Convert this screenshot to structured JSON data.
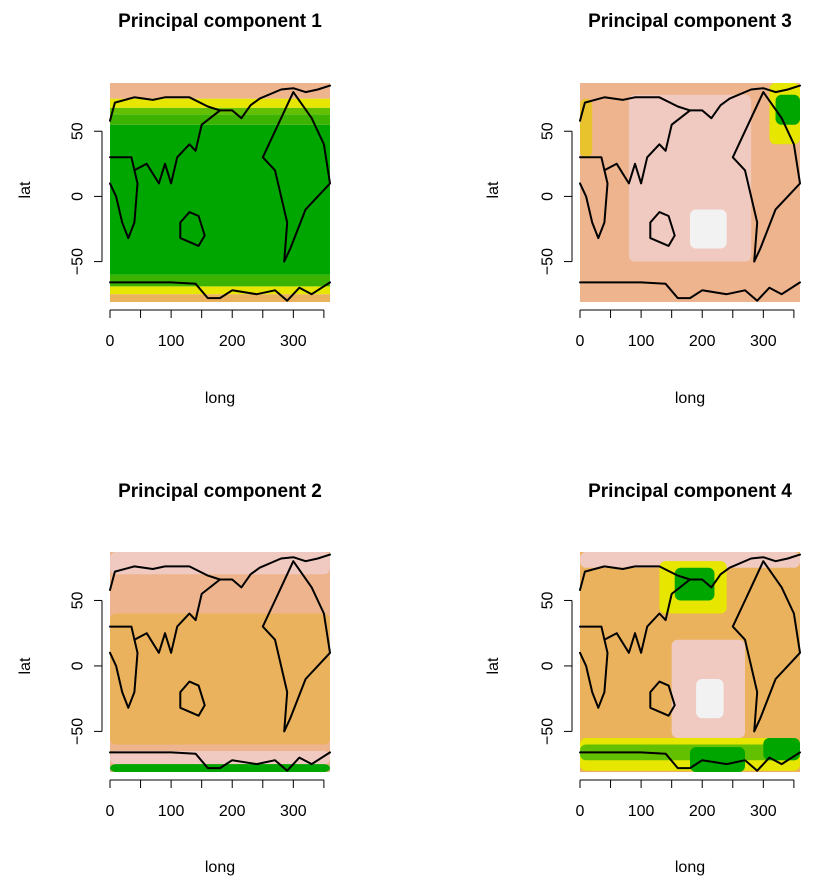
{
  "figure": {
    "layout": "2x2 grid of map panels",
    "palette": [
      "#00A600",
      "#3BB300",
      "#63C000",
      "#E6E600",
      "#E8C32E",
      "#EBB25E",
      "#EDB48E",
      "#F0C9C0",
      "#F2F2F2"
    ],
    "coast_color": "#000000"
  },
  "chart_data": [
    {
      "type": "heatmap",
      "title": "Principal component 1",
      "xlabel": "long",
      "ylabel": "lat",
      "xlim": [
        0,
        360
      ],
      "ylim": [
        -81,
        87
      ],
      "xticks": [
        0,
        100,
        200,
        300
      ],
      "xticks_minor": [
        50,
        150,
        250,
        350
      ],
      "yticks": [
        -50,
        0,
        50
      ],
      "pattern": "zonal bands",
      "bands": [
        {
          "lat_from": -81,
          "lat_to": -75,
          "color": "#EBB25E"
        },
        {
          "lat_from": -75,
          "lat_to": -69,
          "color": "#E6E600"
        },
        {
          "lat_from": -69,
          "lat_to": -60,
          "color": "#3BB300"
        },
        {
          "lat_from": -60,
          "lat_to": 55,
          "color": "#00A600"
        },
        {
          "lat_from": 55,
          "lat_to": 63,
          "color": "#3BB300"
        },
        {
          "lat_from": 63,
          "lat_to": 68,
          "color": "#63C000"
        },
        {
          "lat_from": 68,
          "lat_to": 75,
          "color": "#E6E600"
        },
        {
          "lat_from": 75,
          "lat_to": 87,
          "color": "#EDB48E"
        }
      ]
    },
    {
      "type": "heatmap",
      "title": "Principal component 3",
      "xlabel": "long",
      "ylabel": "lat",
      "xlim": [
        0,
        360
      ],
      "ylim": [
        -81,
        87
      ],
      "xticks": [
        0,
        100,
        200,
        300
      ],
      "xticks_minor": [
        50,
        150,
        250,
        350
      ],
      "yticks": [
        -50,
        0,
        50
      ],
      "background": "#EDB48E",
      "regions": [
        {
          "long_from": 80,
          "long_to": 280,
          "lat_from": -50,
          "lat_to": 78,
          "color": "#F0C9C0"
        },
        {
          "long_from": 180,
          "long_to": 240,
          "lat_from": -40,
          "lat_to": -10,
          "color": "#F2F2F2"
        },
        {
          "long_from": 310,
          "long_to": 360,
          "lat_from": 40,
          "lat_to": 87,
          "color": "#E6E600"
        },
        {
          "long_from": 320,
          "long_to": 360,
          "lat_from": 55,
          "lat_to": 78,
          "color": "#00A600"
        },
        {
          "long_from": 0,
          "long_to": 20,
          "lat_from": 30,
          "lat_to": 75,
          "color": "#E8C32E"
        }
      ]
    },
    {
      "type": "heatmap",
      "title": "Principal component 2",
      "xlabel": "long",
      "ylabel": "lat",
      "xlim": [
        0,
        360
      ],
      "ylim": [
        -81,
        87
      ],
      "xticks": [
        0,
        100,
        200,
        300
      ],
      "xticks_minor": [
        50,
        150,
        250,
        350
      ],
      "yticks": [
        -50,
        0,
        50
      ],
      "background": "#EDB48E",
      "regions": [
        {
          "long_from": 0,
          "long_to": 360,
          "lat_from": -60,
          "lat_to": 40,
          "color": "#EBB25E"
        },
        {
          "long_from": 0,
          "long_to": 360,
          "lat_from": 70,
          "lat_to": 87,
          "color": "#F0C9C0"
        },
        {
          "long_from": 0,
          "long_to": 360,
          "lat_from": -75,
          "lat_to": -65,
          "color": "#F0C9C0"
        },
        {
          "long_from": 0,
          "long_to": 360,
          "lat_from": -81,
          "lat_to": -75,
          "color": "#00A600"
        }
      ]
    },
    {
      "type": "heatmap",
      "title": "Principal component 4",
      "xlabel": "long",
      "ylabel": "lat",
      "xlim": [
        0,
        360
      ],
      "ylim": [
        -81,
        87
      ],
      "xticks": [
        0,
        100,
        200,
        300
      ],
      "xticks_minor": [
        50,
        150,
        250,
        350
      ],
      "yticks": [
        -50,
        0,
        50
      ],
      "background": "#EBB25E",
      "regions": [
        {
          "long_from": 0,
          "long_to": 360,
          "lat_from": 75,
          "lat_to": 87,
          "color": "#F0C9C0"
        },
        {
          "long_from": 130,
          "long_to": 240,
          "lat_from": 40,
          "lat_to": 80,
          "color": "#E6E600"
        },
        {
          "long_from": 155,
          "long_to": 220,
          "lat_from": 50,
          "lat_to": 75,
          "color": "#00A600"
        },
        {
          "long_from": 150,
          "long_to": 270,
          "lat_from": -55,
          "lat_to": 20,
          "color": "#F0C9C0"
        },
        {
          "long_from": 190,
          "long_to": 235,
          "lat_from": -40,
          "lat_to": -10,
          "color": "#F2F2F2"
        },
        {
          "long_from": 0,
          "long_to": 360,
          "lat_from": -80,
          "lat_to": -55,
          "color": "#E6E600"
        },
        {
          "long_from": 0,
          "long_to": 360,
          "lat_from": -72,
          "lat_to": -60,
          "color": "#63C000"
        },
        {
          "long_from": 180,
          "long_to": 270,
          "lat_from": -81,
          "lat_to": -62,
          "color": "#00A600"
        },
        {
          "long_from": 300,
          "long_to": 360,
          "lat_from": -72,
          "lat_to": -55,
          "color": "#00A600"
        }
      ]
    }
  ],
  "coastlines": [
    [
      [
        0,
        58
      ],
      [
        8,
        72
      ],
      [
        40,
        76
      ],
      [
        70,
        74
      ],
      [
        90,
        76
      ],
      [
        130,
        76
      ],
      [
        160,
        69
      ],
      [
        180,
        66
      ],
      [
        200,
        66
      ],
      [
        215,
        60
      ],
      [
        230,
        70
      ],
      [
        245,
        75
      ],
      [
        280,
        82
      ],
      [
        300,
        83
      ],
      [
        320,
        80
      ],
      [
        340,
        82
      ],
      [
        360,
        85
      ]
    ],
    [
      [
        0,
        10
      ],
      [
        10,
        0
      ],
      [
        20,
        -20
      ],
      [
        30,
        -32
      ],
      [
        40,
        -20
      ],
      [
        45,
        10
      ],
      [
        35,
        30
      ],
      [
        0,
        30
      ]
    ],
    [
      [
        40,
        20
      ],
      [
        60,
        25
      ],
      [
        80,
        10
      ],
      [
        90,
        25
      ],
      [
        100,
        10
      ],
      [
        110,
        30
      ],
      [
        130,
        40
      ],
      [
        140,
        35
      ],
      [
        150,
        55
      ],
      [
        180,
        66
      ]
    ],
    [
      [
        115,
        -20
      ],
      [
        130,
        -12
      ],
      [
        145,
        -15
      ],
      [
        155,
        -30
      ],
      [
        145,
        -38
      ],
      [
        115,
        -32
      ],
      [
        115,
        -20
      ]
    ],
    [
      [
        360,
        10
      ],
      [
        350,
        40
      ],
      [
        330,
        60
      ],
      [
        300,
        80
      ],
      [
        280,
        60
      ],
      [
        270,
        50
      ],
      [
        250,
        30
      ],
      [
        270,
        20
      ],
      [
        280,
        0
      ],
      [
        290,
        -20
      ],
      [
        285,
        -50
      ],
      [
        295,
        -40
      ],
      [
        320,
        -10
      ],
      [
        340,
        0
      ],
      [
        360,
        10
      ]
    ],
    [
      [
        0,
        -66
      ],
      [
        50,
        -66
      ],
      [
        100,
        -66
      ],
      [
        140,
        -67
      ],
      [
        160,
        -78
      ],
      [
        180,
        -78
      ],
      [
        200,
        -72
      ],
      [
        240,
        -75
      ],
      [
        270,
        -72
      ],
      [
        290,
        -80
      ],
      [
        310,
        -70
      ],
      [
        330,
        -75
      ],
      [
        360,
        -66
      ]
    ]
  ]
}
